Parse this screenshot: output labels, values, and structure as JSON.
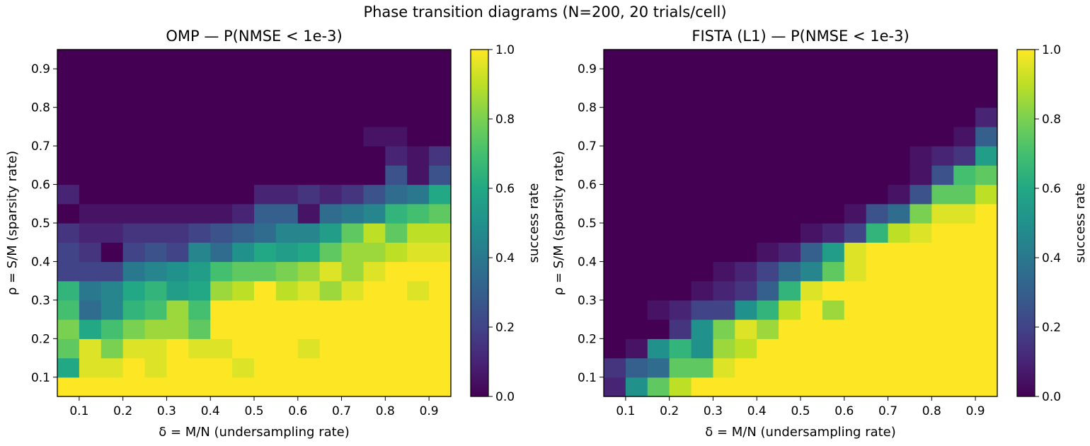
{
  "figure": {
    "suptitle": "Phase transition diagrams  (N=200, 20 trials/cell)"
  },
  "chart_data": [
    {
      "type": "heatmap",
      "title": "OMP  —  P(NMSE < 1e-3)",
      "xlabel": "δ = M/N  (undersampling rate)",
      "ylabel": "ρ = S/M  (sparsity rate)",
      "x_edges": [
        0.05,
        0.95
      ],
      "y_edges": [
        0.05,
        0.95
      ],
      "x_ticks": [
        "0.1",
        "0.2",
        "0.3",
        "0.4",
        "0.5",
        "0.6",
        "0.7",
        "0.8",
        "0.9"
      ],
      "y_ticks": [
        "0.1",
        "0.2",
        "0.3",
        "0.4",
        "0.5",
        "0.6",
        "0.7",
        "0.8",
        "0.9"
      ],
      "colorbar": {
        "label": "success rate",
        "ticks": [
          "0.0",
          "0.2",
          "0.4",
          "0.6",
          "0.8",
          "1.0"
        ],
        "range": [
          0,
          1
        ],
        "colormap": "viridis"
      },
      "rows_note": "rows ordered bottom (rho=0.05-0.10) to top; 18 columns x 18 rows",
      "values": [
        [
          1,
          1,
          1,
          1,
          1,
          1,
          1,
          1,
          1,
          1,
          1,
          1,
          1,
          1,
          1,
          1,
          1,
          1
        ],
        [
          0.6,
          0.95,
          0.95,
          1,
          0.95,
          1,
          1,
          1,
          0.95,
          1,
          1,
          1,
          1,
          1,
          1,
          1,
          1,
          1
        ],
        [
          0.75,
          0.95,
          0.8,
          0.95,
          0.95,
          1,
          0.95,
          0.95,
          1,
          1,
          1,
          0.95,
          1,
          1,
          1,
          1,
          1,
          1
        ],
        [
          0.8,
          0.6,
          0.7,
          0.8,
          0.85,
          0.85,
          0.75,
          1,
          1,
          1,
          1,
          1,
          1,
          1,
          1,
          1,
          1,
          1
        ],
        [
          0.7,
          0.35,
          0.45,
          0.65,
          0.7,
          0.85,
          0.7,
          1,
          1,
          1,
          1,
          1,
          1,
          1,
          1,
          1,
          1,
          1
        ],
        [
          0.65,
          0.4,
          0.45,
          0.6,
          0.65,
          0.55,
          0.6,
          0.85,
          0.9,
          1,
          0.9,
          0.95,
          0.85,
          0.95,
          1,
          1,
          0.95,
          1
        ],
        [
          0.2,
          0.2,
          0.2,
          0.4,
          0.45,
          0.5,
          0.55,
          0.7,
          0.75,
          0.75,
          0.8,
          0.85,
          0.95,
          0.85,
          0.95,
          1,
          1,
          1
        ],
        [
          0.2,
          0.15,
          0,
          0.2,
          0.25,
          0.2,
          0.45,
          0.35,
          0.5,
          0.6,
          0.55,
          0.6,
          0.75,
          0.85,
          0.85,
          0.9,
          0.95,
          0.95
        ],
        [
          0.15,
          0.1,
          0.1,
          0.15,
          0.15,
          0.15,
          0.2,
          0.25,
          0.3,
          0.35,
          0.45,
          0.45,
          0.55,
          0.75,
          0.9,
          0.75,
          0.9,
          0.9
        ],
        [
          0,
          0.05,
          0.05,
          0.05,
          0.05,
          0.05,
          0.05,
          0.05,
          0.1,
          0.3,
          0.3,
          0.05,
          0.35,
          0.4,
          0.45,
          0.65,
          0.7,
          0.75
        ],
        [
          0.1,
          0,
          0,
          0,
          0,
          0,
          0,
          0,
          0,
          0.1,
          0.1,
          0.15,
          0.1,
          0.15,
          0.25,
          0.35,
          0.4,
          0.6
        ],
        [
          0,
          0,
          0,
          0,
          0,
          0,
          0,
          0,
          0,
          0,
          0,
          0,
          0,
          0,
          0,
          0.25,
          0.05,
          0.25
        ],
        [
          0,
          0,
          0,
          0,
          0,
          0,
          0,
          0,
          0,
          0,
          0,
          0,
          0,
          0,
          0,
          0.1,
          0.05,
          0.15
        ],
        [
          0,
          0,
          0,
          0,
          0,
          0,
          0,
          0,
          0,
          0,
          0,
          0,
          0,
          0,
          0.05,
          0.05,
          0,
          0
        ],
        [
          0,
          0,
          0,
          0,
          0,
          0,
          0,
          0,
          0,
          0,
          0,
          0,
          0,
          0,
          0,
          0,
          0,
          0
        ],
        [
          0,
          0,
          0,
          0,
          0,
          0,
          0,
          0,
          0,
          0,
          0,
          0,
          0,
          0,
          0,
          0,
          0,
          0
        ],
        [
          0,
          0,
          0,
          0,
          0,
          0,
          0,
          0,
          0,
          0,
          0,
          0,
          0,
          0,
          0,
          0,
          0,
          0
        ],
        [
          0,
          0,
          0,
          0,
          0,
          0,
          0,
          0,
          0,
          0,
          0,
          0,
          0,
          0,
          0,
          0,
          0,
          0
        ]
      ]
    },
    {
      "type": "heatmap",
      "title": "FISTA (L1)  —  P(NMSE < 1e-3)",
      "xlabel": "δ = M/N  (undersampling rate)",
      "ylabel": "ρ = S/M  (sparsity rate)",
      "x_edges": [
        0.05,
        0.95
      ],
      "y_edges": [
        0.05,
        0.95
      ],
      "x_ticks": [
        "0.1",
        "0.2",
        "0.3",
        "0.4",
        "0.5",
        "0.6",
        "0.7",
        "0.8",
        "0.9"
      ],
      "y_ticks": [
        "0.1",
        "0.2",
        "0.3",
        "0.4",
        "0.5",
        "0.6",
        "0.7",
        "0.8",
        "0.9"
      ],
      "colorbar": {
        "label": "success rate",
        "ticks": [
          "0.0",
          "0.2",
          "0.4",
          "0.6",
          "0.8",
          "1.0"
        ],
        "range": [
          0,
          1
        ],
        "colormap": "viridis"
      },
      "values": [
        [
          0.1,
          0.5,
          0.75,
          0.9,
          1,
          1,
          1,
          1,
          1,
          1,
          1,
          1,
          1,
          1,
          1,
          1,
          1,
          1
        ],
        [
          0.15,
          0.3,
          0.35,
          0.75,
          0.75,
          0.95,
          1,
          1,
          1,
          1,
          1,
          1,
          1,
          1,
          1,
          1,
          1,
          1
        ],
        [
          0,
          0.05,
          0.5,
          0.65,
          0.5,
          0.85,
          0.9,
          1,
          1,
          1,
          1,
          1,
          1,
          1,
          1,
          1,
          1,
          1
        ],
        [
          0,
          0,
          0,
          0.15,
          0.5,
          0.8,
          0.95,
          0.85,
          1,
          1,
          1,
          1,
          1,
          1,
          1,
          1,
          1,
          1
        ],
        [
          0,
          0,
          0.05,
          0.1,
          0.2,
          0.2,
          0.5,
          0.65,
          0.9,
          1,
          0.85,
          1,
          1,
          1,
          1,
          1,
          1,
          1
        ],
        [
          0,
          0,
          0,
          0,
          0.05,
          0.1,
          0.15,
          0.3,
          0.65,
          0.95,
          1,
          1,
          1,
          1,
          1,
          1,
          1,
          1
        ],
        [
          0,
          0,
          0,
          0,
          0,
          0.05,
          0.1,
          0.2,
          0.35,
          0.45,
          0.75,
          0.95,
          1,
          1,
          1,
          1,
          1,
          1
        ],
        [
          0,
          0,
          0,
          0,
          0,
          0,
          0,
          0.05,
          0.1,
          0.3,
          0.55,
          0.95,
          1,
          1,
          1,
          1,
          1,
          1
        ],
        [
          0,
          0,
          0,
          0,
          0,
          0,
          0,
          0,
          0,
          0.05,
          0.1,
          0.2,
          0.65,
          0.9,
          0.95,
          1,
          1,
          1
        ],
        [
          0,
          0,
          0,
          0,
          0,
          0,
          0,
          0,
          0,
          0,
          0,
          0.05,
          0.25,
          0.35,
          0.8,
          0.95,
          0.95,
          1
        ],
        [
          0,
          0,
          0,
          0,
          0,
          0,
          0,
          0,
          0,
          0,
          0,
          0,
          0,
          0.05,
          0.25,
          0.75,
          0.75,
          0.9
        ],
        [
          0,
          0,
          0,
          0,
          0,
          0,
          0,
          0,
          0,
          0,
          0,
          0,
          0,
          0,
          0.05,
          0.25,
          0.7,
          0.75
        ],
        [
          0,
          0,
          0,
          0,
          0,
          0,
          0,
          0,
          0,
          0,
          0,
          0,
          0,
          0,
          0.05,
          0.1,
          0.15,
          0.55
        ],
        [
          0,
          0,
          0,
          0,
          0,
          0,
          0,
          0,
          0,
          0,
          0,
          0,
          0,
          0,
          0,
          0,
          0.05,
          0.3
        ],
        [
          0,
          0,
          0,
          0,
          0,
          0,
          0,
          0,
          0,
          0,
          0,
          0,
          0,
          0,
          0,
          0,
          0,
          0.1
        ],
        [
          0,
          0,
          0,
          0,
          0,
          0,
          0,
          0,
          0,
          0,
          0,
          0,
          0,
          0,
          0,
          0,
          0,
          0
        ],
        [
          0,
          0,
          0,
          0,
          0,
          0,
          0,
          0,
          0,
          0,
          0,
          0,
          0,
          0,
          0,
          0,
          0,
          0
        ],
        [
          0,
          0,
          0,
          0,
          0,
          0,
          0,
          0,
          0,
          0,
          0,
          0,
          0,
          0,
          0,
          0,
          0,
          0
        ]
      ]
    }
  ]
}
